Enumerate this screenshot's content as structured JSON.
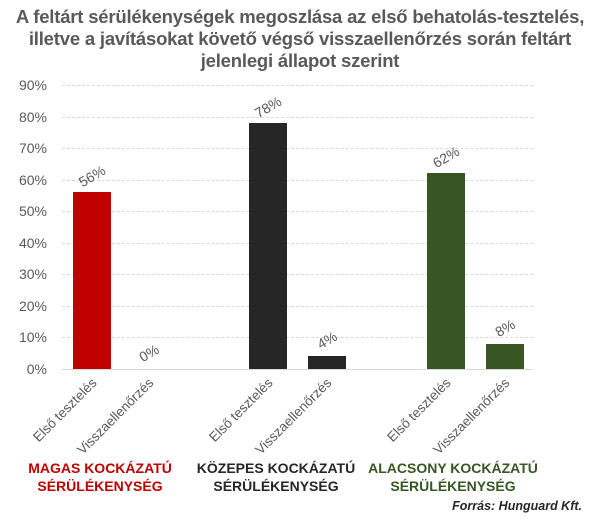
{
  "chart_data": {
    "type": "bar",
    "title": "A feltárt sérülékenységek megoszlása az első behatolás-tesztelés, illetve a javításokat követő végső visszaellenőrzés során feltárt jelenlegi állapot szerint",
    "title_lines": [
      "A feltárt sérülékenységek megoszlása az első behatolás-tesztelés,",
      "illetve a javításokat követő végső visszaellenőrzés során feltárt",
      "jelenlegi állapot szerint"
    ],
    "xlabel": "",
    "ylabel": "",
    "ylim": [
      0,
      90
    ],
    "yticks": [
      "0%",
      "10%",
      "20%",
      "30%",
      "40%",
      "50%",
      "60%",
      "70%",
      "80%",
      "90%"
    ],
    "grid": true,
    "legend": "none",
    "groups": [
      {
        "name": "MAGAS KOCKÁZATÚ SÉRÜLÉKENYSÉG",
        "name_lines": [
          "MAGAS KOCKÁZATÚ",
          "SÉRÜLÉKENYSÉG"
        ],
        "color": "#C00000",
        "categories": [
          "Első tesztelés",
          "Visszaellenőrzés"
        ],
        "values": [
          56,
          0
        ],
        "labels": [
          "56%",
          "0%"
        ]
      },
      {
        "name": "KÖZEPES KOCKÁZATÚ SÉRÜLÉKENYSÉG",
        "name_lines": [
          "KÖZEPES KOCKÁZATÚ",
          "SÉRÜLÉKENYSÉG"
        ],
        "color": "#262626",
        "categories": [
          "Első tesztelés",
          "Visszaellenőrzés"
        ],
        "values": [
          78,
          4
        ],
        "labels": [
          "78%",
          "4%"
        ]
      },
      {
        "name": "ALACSONY KOCKÁZATÚ SÉRÜLÉKENYSÉG",
        "name_lines": [
          "ALACSONY KOCKÁZATÚ",
          "SÉRÜLÉKENYSÉG"
        ],
        "color": "#375623",
        "categories": [
          "Első tesztelés",
          "Visszaellenőrzés"
        ],
        "values": [
          62,
          8
        ],
        "labels": [
          "62%",
          "8%"
        ]
      }
    ],
    "series": [
      {
        "name": "Első tesztelés",
        "values": [
          56,
          78,
          62
        ]
      },
      {
        "name": "Visszaellenőrzés",
        "values": [
          0,
          4,
          8
        ]
      }
    ],
    "categories": [
      "MAGAS KOCKÁZATÚ SÉRÜLÉKENYSÉG",
      "KÖZEPES KOCKÁZATÚ SÉRÜLÉKENYSÉG",
      "ALACSONY KOCKÁZATÚ SÉRÜLÉKENYSÉG"
    ],
    "source": "Forrás: Hunguard  Kft."
  }
}
